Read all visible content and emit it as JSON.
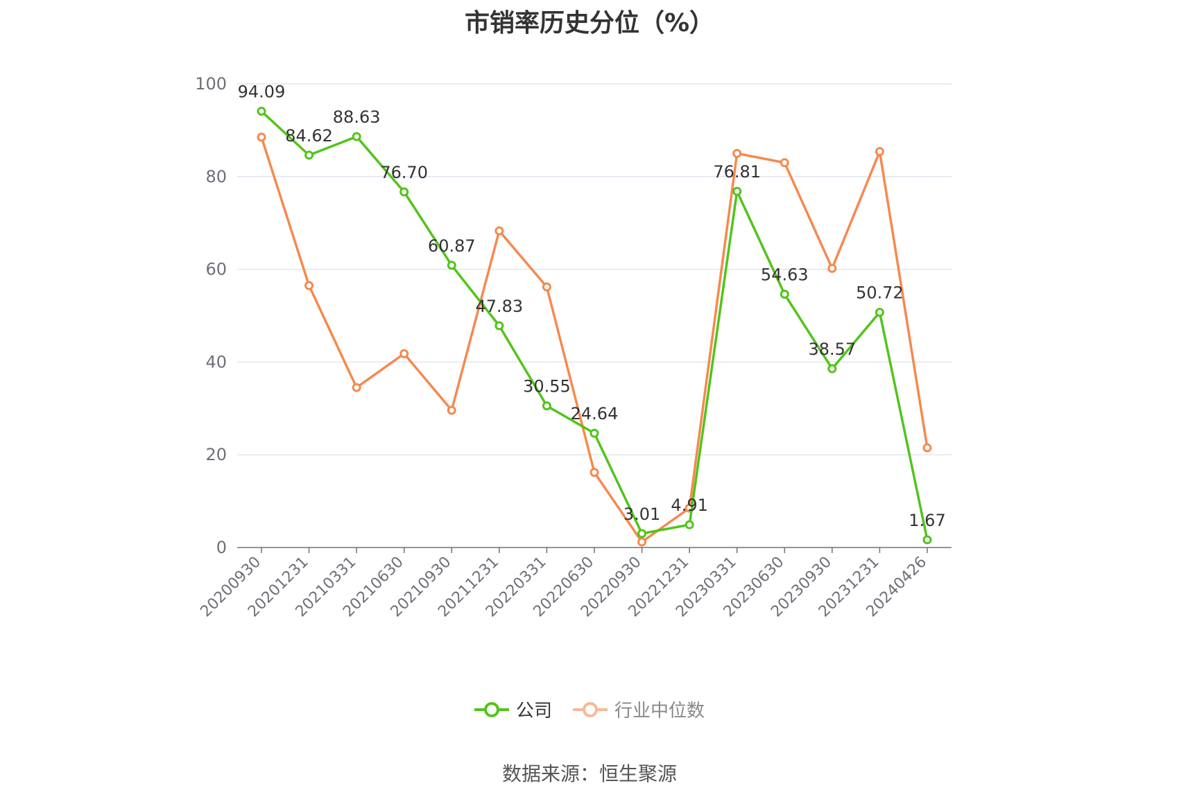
{
  "chart_data": {
    "type": "line",
    "title": "市销率历史分位（%）",
    "categories": [
      "20200930",
      "20201231",
      "20210331",
      "20210630",
      "20210930",
      "20211231",
      "20220331",
      "20220630",
      "20220930",
      "20221231",
      "20230331",
      "20230630",
      "20230930",
      "20231231",
      "20240426"
    ],
    "series": [
      {
        "name": "公司",
        "color": "#52c41a",
        "values": [
          94.09,
          84.62,
          88.63,
          76.7,
          60.87,
          47.83,
          30.55,
          24.64,
          3.01,
          4.91,
          76.81,
          54.63,
          38.57,
          50.72,
          1.67
        ],
        "labels": [
          "94.09",
          "84.62",
          "88.63",
          "76.70",
          "60.87",
          "47.83",
          "30.55",
          "24.64",
          "3.01",
          "4.91",
          "76.81",
          "54.63",
          "38.57",
          "50.72",
          "1.67"
        ]
      },
      {
        "name": "行业中位数",
        "color": "#f5894f",
        "values": [
          88.5,
          56.5,
          34.5,
          41.8,
          29.6,
          68.3,
          56.2,
          16.2,
          1.2,
          8.5,
          85.0,
          83.0,
          60.2,
          85.4,
          21.5
        ]
      }
    ],
    "yticks": [
      "0",
      "20",
      "40",
      "60",
      "80",
      "100"
    ],
    "ylim": [
      0,
      100
    ],
    "grid": true,
    "legend_position": "bottom"
  },
  "source": "数据来源：恒生聚源"
}
